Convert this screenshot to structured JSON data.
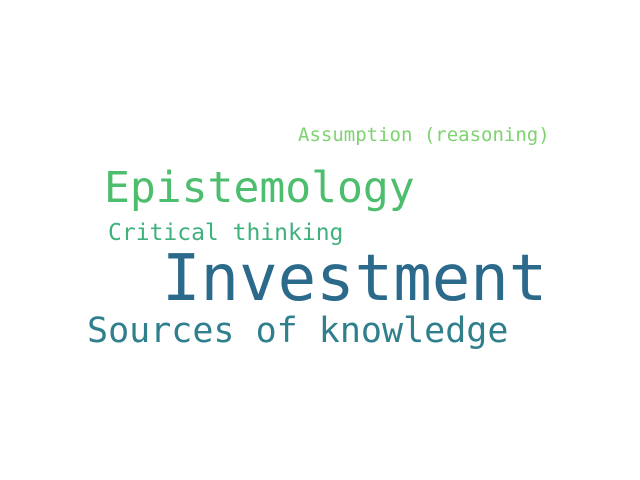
{
  "word_cloud": {
    "words": [
      {
        "text": "Assumption (reasoning)",
        "color": "#7dd36e"
      },
      {
        "text": "Epistemology",
        "color": "#4cbe6e"
      },
      {
        "text": "Critical thinking",
        "color": "#3fb17d"
      },
      {
        "text": "Investment",
        "color": "#2c6a8c"
      },
      {
        "text": "Sources of knowledge",
        "color": "#2f7f8d"
      }
    ]
  }
}
